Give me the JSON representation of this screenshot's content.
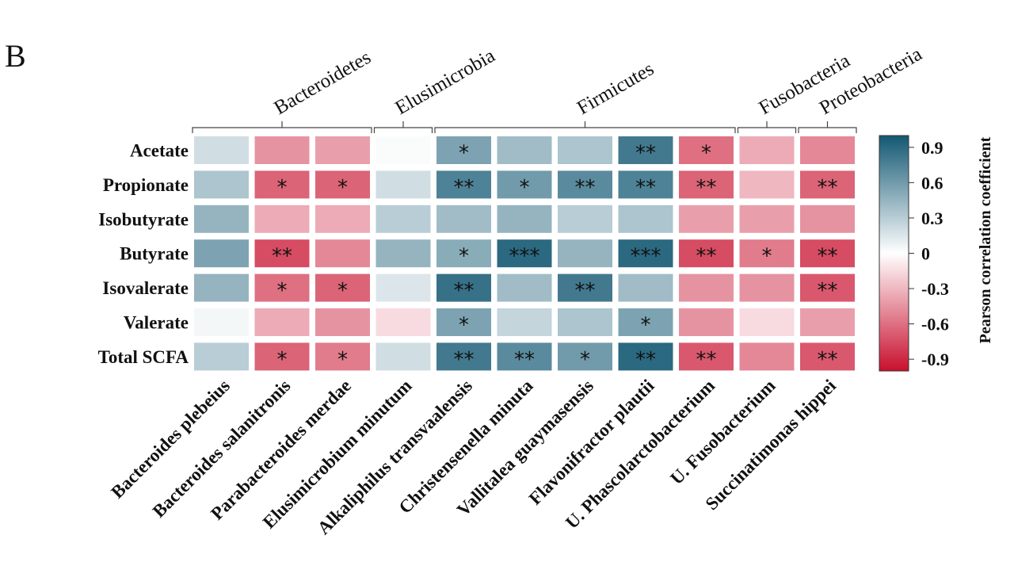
{
  "panel_label": "B",
  "chart_data": {
    "type": "heatmap",
    "rows": [
      "Acetate",
      "Propionate",
      "Isobutyrate",
      "Butyrate",
      "Isovalerate",
      "Valerate",
      "Total SCFA"
    ],
    "columns": [
      "Bacteroides plebeius",
      "Bacteroides salanitronis",
      "Parabacteroides merdae",
      "Elusimicrobium minutum",
      "Alkaliphilus transvaalensis",
      "Christensenella minuta",
      "Vallitalea guaymasensis",
      "Flavonifractor plautii",
      "U. Phascolarctobacterium",
      "U. Fusobacterium",
      "Succinatimonas hippei"
    ],
    "phyla": [
      {
        "name": "Bacteroidetes",
        "columns": [
          0,
          2
        ]
      },
      {
        "name": "Elusimicrobia",
        "columns": [
          3,
          3
        ]
      },
      {
        "name": "Firmicutes",
        "columns": [
          4,
          8
        ]
      },
      {
        "name": "Fusobacteria",
        "columns": [
          9,
          9
        ]
      },
      {
        "name": "Proteobacteria",
        "columns": [
          10,
          10
        ]
      }
    ],
    "values": [
      [
        0.2,
        -0.45,
        -0.4,
        0.02,
        0.55,
        0.4,
        0.35,
        0.8,
        -0.6,
        -0.35,
        -0.5
      ],
      [
        0.35,
        -0.65,
        -0.65,
        0.2,
        0.75,
        0.6,
        0.7,
        0.75,
        -0.65,
        -0.3,
        -0.65
      ],
      [
        0.45,
        -0.35,
        -0.35,
        0.3,
        0.4,
        0.45,
        0.3,
        0.35,
        -0.4,
        -0.4,
        -0.45
      ],
      [
        0.55,
        -0.75,
        -0.5,
        0.45,
        0.5,
        0.9,
        0.45,
        0.9,
        -0.75,
        -0.55,
        -0.75
      ],
      [
        0.45,
        -0.6,
        -0.65,
        0.15,
        0.85,
        0.4,
        0.8,
        0.4,
        -0.45,
        -0.45,
        -0.7
      ],
      [
        0.05,
        -0.35,
        -0.45,
        -0.15,
        0.55,
        0.25,
        0.35,
        0.55,
        -0.45,
        -0.15,
        -0.4
      ],
      [
        0.3,
        -0.65,
        -0.55,
        0.2,
        0.8,
        0.7,
        0.6,
        0.9,
        -0.7,
        -0.5,
        -0.7
      ]
    ],
    "significance": [
      [
        "",
        "",
        "",
        "",
        "*",
        "",
        "",
        "**",
        "*",
        "",
        ""
      ],
      [
        "",
        "*",
        "*",
        "",
        "**",
        "*",
        "**",
        "**",
        "**",
        "",
        "**"
      ],
      [
        "",
        "",
        "",
        "",
        "",
        "",
        "",
        "",
        "",
        "",
        ""
      ],
      [
        "",
        "**",
        "",
        "",
        "*",
        "***",
        "",
        "***",
        "**",
        "*",
        "**"
      ],
      [
        "",
        "*",
        "*",
        "",
        "**",
        "",
        "**",
        "",
        "",
        "",
        "**"
      ],
      [
        "",
        "",
        "",
        "",
        "*",
        "",
        "",
        "*",
        "",
        "",
        ""
      ],
      [
        "",
        "*",
        "*",
        "",
        "**",
        "**",
        "*",
        "**",
        "**",
        "",
        "**"
      ]
    ],
    "colorbar": {
      "label": "Pearson correlation coefficient",
      "range": [
        -1.0,
        1.0
      ],
      "ticks": [
        0.9,
        0.6,
        0.3,
        0,
        -0.3,
        -0.6,
        -0.9
      ],
      "tick_labels": [
        "0.9",
        "0.6",
        "0.3",
        "0",
        "-0.3",
        "-0.6",
        "-0.9"
      ],
      "colors": {
        "negative": "#c8102e",
        "zero": "#ffffff",
        "positive": "#135873"
      }
    }
  }
}
